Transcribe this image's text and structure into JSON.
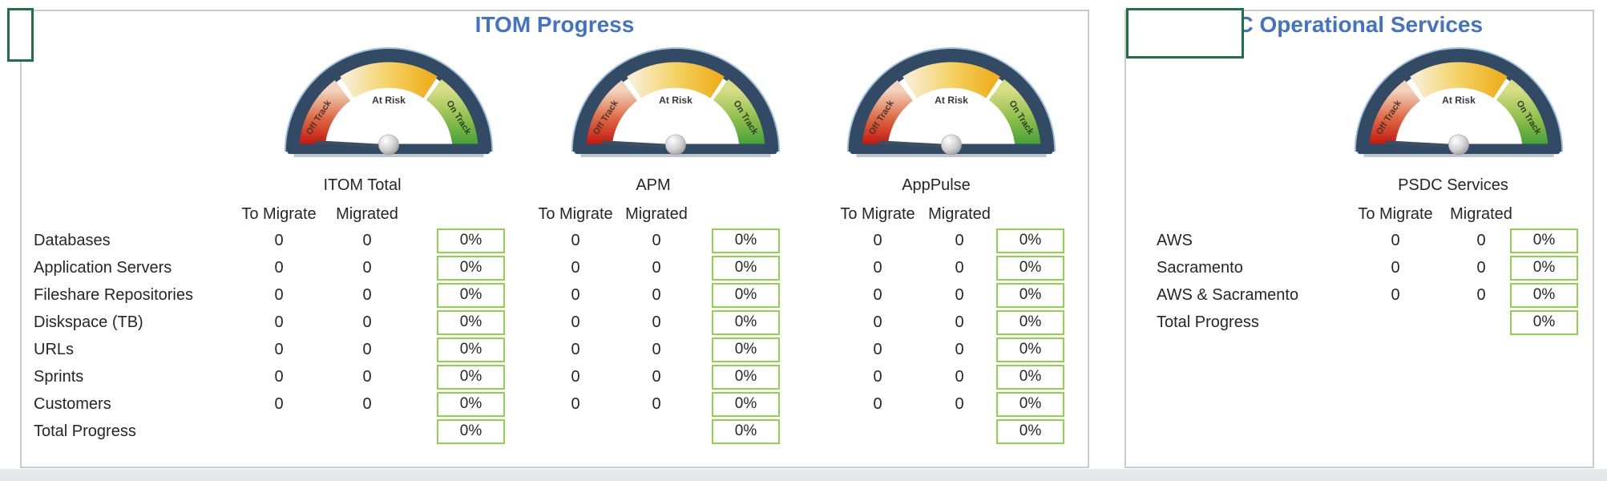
{
  "left_panel": {
    "title": "ITOM Progress",
    "row_labels": [
      "Databases",
      "Application Servers",
      "Fileshare Repositories",
      "Diskspace (TB)",
      "URLs",
      "Sprints",
      "Customers",
      "Total Progress"
    ],
    "sections": [
      {
        "name": "ITOM Total",
        "to_migrate": [
          "0",
          "0",
          "0",
          "0",
          "0",
          "0",
          "0",
          ""
        ],
        "migrated": [
          "0",
          "0",
          "0",
          "0",
          "0",
          "0",
          "0",
          ""
        ],
        "percent": [
          "0%",
          "0%",
          "0%",
          "0%",
          "0%",
          "0%",
          "0%",
          "0%"
        ]
      },
      {
        "name": "APM",
        "to_migrate": [
          "0",
          "0",
          "0",
          "0",
          "0",
          "0",
          "0",
          ""
        ],
        "migrated": [
          "0",
          "0",
          "0",
          "0",
          "0",
          "0",
          "0",
          ""
        ],
        "percent": [
          "0%",
          "0%",
          "0%",
          "0%",
          "0%",
          "0%",
          "0%",
          "0%"
        ]
      },
      {
        "name": "AppPulse",
        "to_migrate": [
          "0",
          "0",
          "0",
          "0",
          "0",
          "0",
          "0",
          ""
        ],
        "migrated": [
          "0",
          "0",
          "0",
          "0",
          "0",
          "0",
          "0",
          ""
        ],
        "percent": [
          "0%",
          "0%",
          "0%",
          "0%",
          "0%",
          "0%",
          "0%",
          "0%"
        ]
      }
    ]
  },
  "right_panel": {
    "title": "PSDC Operational Services",
    "row_labels": [
      "AWS",
      "Sacramento",
      "AWS & Sacramento",
      "Total Progress"
    ],
    "sections": [
      {
        "name": "PSDC Services",
        "to_migrate": [
          "0",
          "0",
          "0",
          ""
        ],
        "migrated": [
          "0",
          "0",
          "0",
          ""
        ],
        "percent": [
          "0%",
          "0%",
          "0%",
          "0%"
        ]
      }
    ]
  },
  "headers": {
    "to_migrate": "To Migrate",
    "migrated": "Migrated"
  },
  "gauge": {
    "zones": {
      "left": "Off Track",
      "top": "At Risk",
      "right": "On Track"
    }
  },
  "colors": {
    "title_blue": "#4472C4",
    "cell_border_green": "#92D050",
    "selection_green": "#1E7145",
    "gauge_rim_navy": "#334A64",
    "zone_red": "#BE0000",
    "zone_gold": "#EFAF1F",
    "zone_green": "#2E9932",
    "panel_border_gray": "#CBCBCB"
  }
}
